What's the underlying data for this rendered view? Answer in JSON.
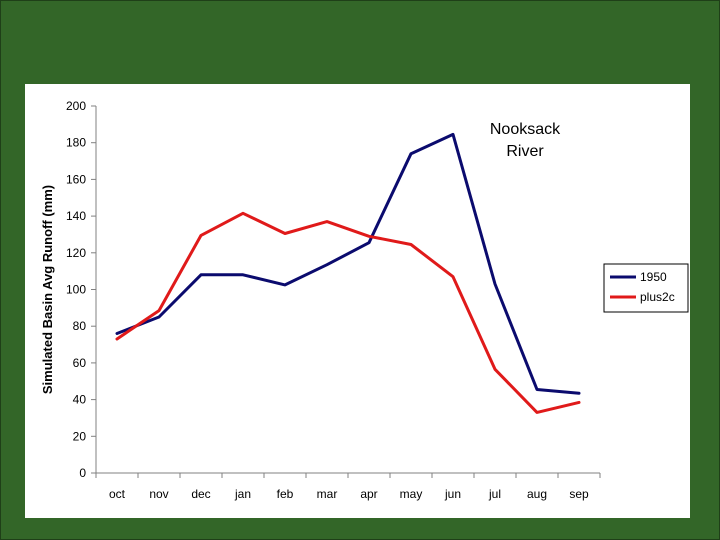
{
  "chart_data": {
    "type": "line",
    "title": "",
    "annotation": [
      "Nooksack",
      "River"
    ],
    "xlabel": "",
    "ylabel": "Simulated Basin Avg Runoff (mm)",
    "categories": [
      "oct",
      "nov",
      "dec",
      "jan",
      "feb",
      "mar",
      "apr",
      "may",
      "jun",
      "jul",
      "aug",
      "sep"
    ],
    "ylim": [
      0,
      200
    ],
    "yticks": [
      0,
      20,
      40,
      60,
      80,
      100,
      120,
      140,
      160,
      180,
      200
    ],
    "grid": false,
    "legend_position": "right",
    "series": [
      {
        "name": "1950",
        "color": "#0b0b6e",
        "values": [
          76,
          85,
          108,
          108,
          102.5,
          113.5,
          125.5,
          174,
          184.5,
          103,
          45.5,
          43.5
        ]
      },
      {
        "name": "plus2c",
        "color": "#e01a1a",
        "values": [
          73,
          88.5,
          129.5,
          141.5,
          130.5,
          137,
          129,
          124.5,
          107,
          56.5,
          33,
          38.5
        ]
      }
    ]
  }
}
